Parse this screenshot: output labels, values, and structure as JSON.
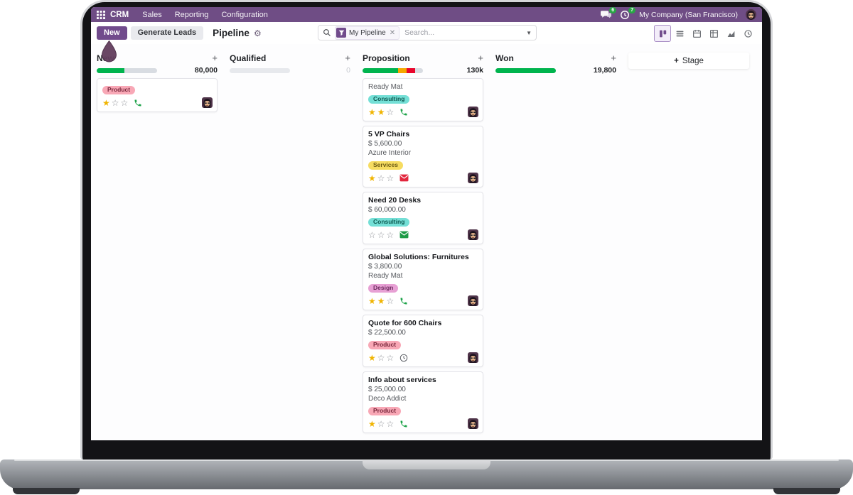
{
  "colors": {
    "brand_purple": "#714b8c",
    "nav_purple": "#6f4d85",
    "success_green": "#00b44e",
    "warning_orange": "#f5a800",
    "danger_red": "#e9062c",
    "bar_track": "#d8dce2",
    "star_gold": "#f0b400",
    "tag_product_bg": "#f8a8b6",
    "tag_consulting_bg": "#74dfd6",
    "tag_services_bg": "#f6dc61",
    "tag_design_bg": "#e7a0d4"
  },
  "icons": {
    "apps": "grid-icon",
    "search": "magnifier-icon",
    "filter": "funnel-icon",
    "settings": "gear-icon",
    "messages": "chat-bubbles-icon",
    "activities": "clock-icon",
    "view_switcher": [
      "kanban",
      "list",
      "calendar",
      "pivot",
      "graph",
      "activity"
    ]
  },
  "nav": {
    "app_name": "CRM",
    "menus": [
      "Sales",
      "Reporting",
      "Configuration"
    ],
    "messages_badge": "6",
    "activities_badge": "7",
    "company": "My Company (San Francisco)"
  },
  "control": {
    "new_button": "New",
    "generate_leads_button": "Generate Leads",
    "page_title": "Pipeline",
    "search_facet": "My Pipeline",
    "search_placeholder": "Search..."
  },
  "board": {
    "add_stage_button": "Stage",
    "columns": [
      {
        "name": "New",
        "total": "80,000",
        "bar": [
          {
            "color": "#00b44e",
            "pct": 46
          },
          {
            "color": "#d8dce2",
            "pct": 54
          }
        ]
      },
      {
        "name": "Qualified",
        "total": "0",
        "bar": [
          {
            "color": "#e7e9ed",
            "pct": 100
          }
        ]
      },
      {
        "name": "Proposition",
        "total": "130k",
        "bar": [
          {
            "color": "#00b44e",
            "pct": 59
          },
          {
            "color": "#f5a800",
            "pct": 14
          },
          {
            "color": "#e9062c",
            "pct": 14
          },
          {
            "color": "#d8dce2",
            "pct": 13
          }
        ]
      },
      {
        "name": "Won",
        "total": "19,800",
        "bar": [
          {
            "color": "#00b44e",
            "pct": 100
          }
        ]
      }
    ],
    "cards": {
      "new_card_1": {
        "tag": "Product",
        "stars": 1,
        "activity_icon": "phone-icon"
      },
      "prop_card_1": {
        "company": "Ready Mat",
        "tag": "Consulting",
        "stars": 2,
        "activity_icon": "phone-icon"
      },
      "prop_card_2": {
        "title": "5 VP Chairs",
        "amount": "$ 5,600.00",
        "company": "Azure Interior",
        "tag": "Services",
        "stars": 1,
        "activity_icon": "envelope-icon"
      },
      "prop_card_3": {
        "title": "Need 20 Desks",
        "amount": "$ 60,000.00",
        "tag": "Consulting",
        "stars": 0,
        "activity_icon": "envelope-icon"
      },
      "prop_card_4": {
        "title": "Global Solutions: Furnitures",
        "amount": "$ 3,800.00",
        "company": "Ready Mat",
        "tag": "Design",
        "stars": 2,
        "activity_icon": "phone-icon"
      },
      "prop_card_5": {
        "title": "Quote for 600 Chairs",
        "amount": "$ 22,500.00",
        "tag": "Product",
        "stars": 1,
        "activity_icon": "clock-icon"
      },
      "prop_card_6": {
        "title": "Info about services",
        "amount": "$ 25,000.00",
        "company": "Deco Addict",
        "tag": "Product",
        "stars": 1,
        "activity_icon": "phone-icon"
      }
    }
  }
}
